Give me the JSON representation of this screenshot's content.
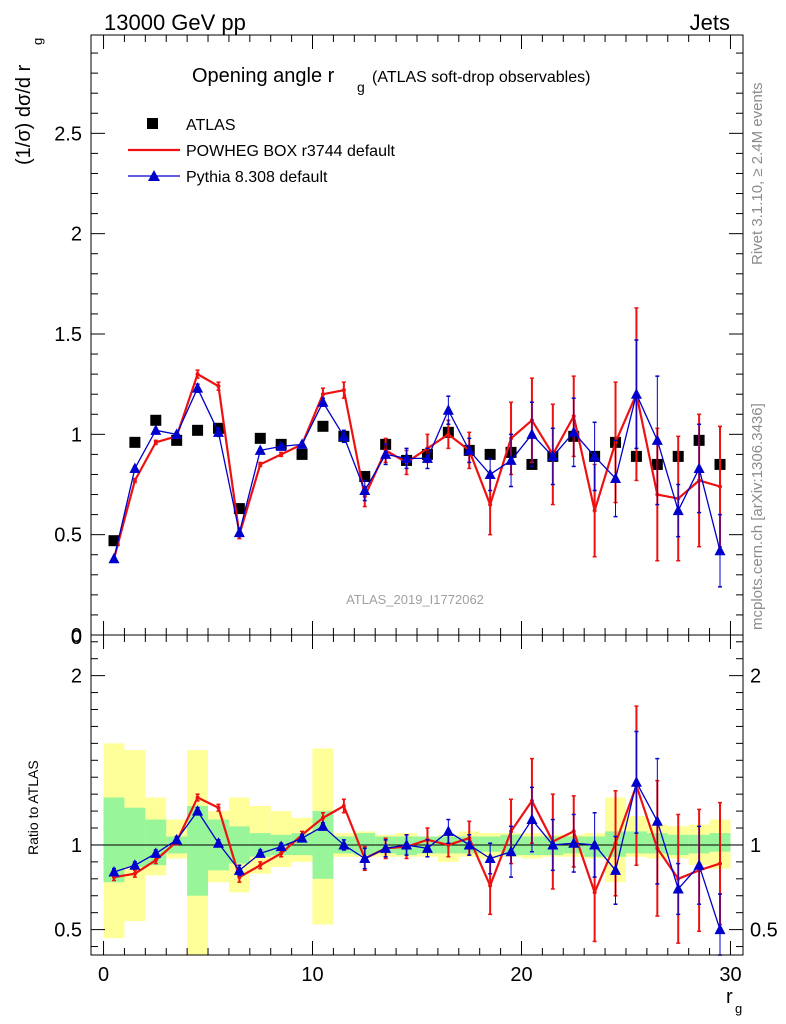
{
  "header": {
    "left": "13000 GeV pp",
    "right": "Jets"
  },
  "title": {
    "main": "Opening angle r",
    "sub": "g",
    "rest": "(ATLAS soft-drop observables)"
  },
  "watermark": "ATLAS_2019_I1772062",
  "side_labels": {
    "rivet": "Rivet 3.1.10, ≥ 2.4M events",
    "mcplots": "mcplots.cern.ch [arXiv:1306.3436]"
  },
  "axes": {
    "ylabel_main": "(1/σ) dσ/d r",
    "ylabel_main_sub": "g",
    "ylabel_ratio": "Ratio to ATLAS",
    "xlabel": "r",
    "xlabel_sub": "g"
  },
  "legend": {
    "atlas": "ATLAS",
    "powheg": "POWHEG BOX r3744 default",
    "pythia": "Pythia 8.308 default"
  },
  "colors": {
    "atlas": "#000000",
    "powheg": "#ee1111",
    "pythia": "#0000cc",
    "band_inner": "#99f599",
    "band_outer": "#ffff99"
  },
  "chart_data": [
    {
      "type": "scatter",
      "panel": "main",
      "title": "Opening angle r_g (ATLAS soft-drop observables)",
      "xlim": [
        -0.6,
        30.6
      ],
      "ylim": [
        0,
        2.99
      ],
      "yticks": [
        0,
        0.5,
        1,
        1.5,
        2,
        2.5
      ],
      "xticks": [
        0,
        10,
        20,
        30
      ],
      "x": [
        0.5,
        1.5,
        2.5,
        3.5,
        4.5,
        5.5,
        6.5,
        7.5,
        8.5,
        9.5,
        10.5,
        11.5,
        12.5,
        13.5,
        14.5,
        15.5,
        16.5,
        17.5,
        18.5,
        19.5,
        20.5,
        21.5,
        22.5,
        23.5,
        24.5,
        25.5,
        26.5,
        27.5,
        28.5,
        29.5
      ],
      "series": [
        {
          "name": "ATLAS",
          "values": [
            0.47,
            0.96,
            1.07,
            0.97,
            1.02,
            1.03,
            0.63,
            0.98,
            0.95,
            0.9,
            1.04,
            0.99,
            0.79,
            0.95,
            0.87,
            0.9,
            1.01,
            0.92,
            0.9,
            0.91,
            0.85,
            0.89,
            0.99,
            0.89,
            0.96,
            0.89,
            0.85,
            0.89,
            0.97,
            0.85
          ]
        },
        {
          "name": "POWHEG BOX r3744 default",
          "values": [
            0.38,
            0.77,
            0.96,
            0.99,
            1.3,
            1.24,
            0.5,
            0.85,
            0.9,
            0.95,
            1.2,
            1.22,
            0.69,
            0.92,
            0.86,
            0.93,
            1.0,
            0.92,
            0.65,
            0.98,
            1.07,
            0.9,
            1.09,
            0.62,
            0.96,
            1.2,
            0.7,
            0.68,
            0.77,
            0.74
          ],
          "errors": [
            0.01,
            0.01,
            0.01,
            0.01,
            0.02,
            0.02,
            0.02,
            0.01,
            0.01,
            0.01,
            0.03,
            0.04,
            0.05,
            0.06,
            0.06,
            0.07,
            0.07,
            0.09,
            0.15,
            0.18,
            0.21,
            0.25,
            0.2,
            0.23,
            0.3,
            0.43,
            0.33,
            0.31,
            0.33,
            0.3
          ]
        },
        {
          "name": "Pythia 8.308 default",
          "values": [
            0.38,
            0.83,
            1.02,
            1.0,
            1.23,
            1.01,
            0.51,
            0.92,
            0.94,
            0.95,
            1.16,
            0.99,
            0.72,
            0.9,
            0.88,
            0.88,
            1.12,
            0.92,
            0.8,
            0.87,
            1.0,
            0.89,
            1.01,
            0.89,
            0.78,
            1.2,
            0.97,
            0.62,
            0.83,
            0.42
          ],
          "errors": [
            0.01,
            0.01,
            0.01,
            0.01,
            0.02,
            0.02,
            0.02,
            0.01,
            0.01,
            0.01,
            0.02,
            0.03,
            0.05,
            0.05,
            0.05,
            0.05,
            0.07,
            0.06,
            0.08,
            0.13,
            0.16,
            0.14,
            0.17,
            0.17,
            0.19,
            0.27,
            0.32,
            0.13,
            0.22,
            0.18
          ]
        }
      ]
    },
    {
      "type": "scatter",
      "panel": "ratio",
      "ylabel": "Ratio to ATLAS",
      "xlabel": "r_g",
      "xlim": [
        -0.6,
        30.6
      ],
      "ylim": [
        0.35,
        2.24
      ],
      "yticks": [
        0.5,
        1,
        2
      ],
      "xticks": [
        0,
        10,
        20,
        30
      ],
      "reference_line": 1,
      "x": [
        0.5,
        1.5,
        2.5,
        3.5,
        4.5,
        5.5,
        6.5,
        7.5,
        8.5,
        9.5,
        10.5,
        11.5,
        12.5,
        13.5,
        14.5,
        15.5,
        16.5,
        17.5,
        18.5,
        19.5,
        20.5,
        21.5,
        22.5,
        23.5,
        24.5,
        25.5,
        26.5,
        27.5,
        28.5,
        29.5
      ],
      "bands": [
        {
          "name": "inner",
          "low": [
            0.78,
            0.87,
            0.88,
            0.95,
            0.7,
            0.85,
            0.89,
            0.93,
            0.94,
            0.94,
            0.8,
            0.95,
            0.94,
            0.95,
            0.94,
            0.95,
            0.95,
            0.95,
            0.96,
            0.94,
            0.94,
            0.94,
            0.95,
            0.93,
            0.93,
            0.95,
            0.95,
            0.94,
            0.95,
            0.96
          ],
          "high": [
            1.28,
            1.22,
            1.15,
            1.05,
            1.23,
            1.15,
            1.11,
            1.07,
            1.06,
            1.07,
            1.2,
            1.05,
            1.07,
            1.05,
            1.05,
            1.05,
            1.05,
            1.05,
            1.05,
            1.06,
            1.05,
            1.05,
            1.05,
            1.05,
            1.08,
            1.08,
            1.07,
            1.06,
            1.06,
            1.07
          ]
        },
        {
          "name": "outer",
          "low": [
            0.45,
            0.55,
            0.82,
            0.92,
            0.35,
            0.78,
            0.72,
            0.83,
            0.87,
            0.9,
            0.53,
            0.93,
            0.93,
            0.93,
            0.93,
            0.93,
            0.9,
            0.93,
            0.92,
            0.93,
            0.92,
            0.93,
            0.93,
            0.92,
            0.78,
            0.93,
            0.92,
            0.92,
            0.88,
            0.86
          ],
          "high": [
            1.6,
            1.56,
            1.28,
            1.15,
            1.56,
            1.2,
            1.28,
            1.23,
            1.2,
            1.16,
            1.57,
            1.07,
            1.08,
            1.06,
            1.07,
            1.05,
            1.06,
            1.08,
            1.07,
            1.07,
            1.07,
            1.06,
            1.06,
            1.07,
            1.28,
            1.17,
            1.12,
            1.11,
            1.12,
            1.15
          ]
        }
      ],
      "series": [
        {
          "name": "POWHEG BOX r3744 default",
          "values": [
            0.81,
            0.83,
            0.91,
            1.02,
            1.28,
            1.22,
            0.81,
            0.88,
            0.95,
            1.06,
            1.16,
            1.23,
            0.92,
            0.98,
            0.99,
            1.03,
            1.0,
            1.04,
            0.76,
            1.08,
            1.26,
            1.02,
            1.08,
            0.72,
            1.01,
            1.35,
            0.98,
            0.8,
            0.85,
            0.89
          ],
          "errors": [
            0.02,
            0.02,
            0.02,
            0.02,
            0.02,
            0.02,
            0.03,
            0.02,
            0.02,
            0.02,
            0.03,
            0.04,
            0.07,
            0.06,
            0.07,
            0.07,
            0.07,
            0.1,
            0.17,
            0.19,
            0.25,
            0.28,
            0.21,
            0.29,
            0.31,
            0.47,
            0.4,
            0.38,
            0.36,
            0.36
          ]
        },
        {
          "name": "Pythia 8.308 default",
          "values": [
            0.84,
            0.88,
            0.95,
            1.03,
            1.2,
            1.01,
            0.85,
            0.95,
            0.99,
            1.04,
            1.11,
            1.0,
            0.92,
            0.98,
            1.0,
            0.98,
            1.08,
            1.0,
            0.92,
            0.96,
            1.15,
            1.0,
            1.01,
            1.0,
            0.85,
            1.37,
            1.14,
            0.74,
            0.88,
            0.5
          ],
          "errors": [
            0.02,
            0.02,
            0.02,
            0.02,
            0.02,
            0.02,
            0.03,
            0.02,
            0.02,
            0.02,
            0.02,
            0.03,
            0.06,
            0.05,
            0.06,
            0.05,
            0.07,
            0.06,
            0.09,
            0.15,
            0.19,
            0.15,
            0.17,
            0.19,
            0.2,
            0.3,
            0.37,
            0.15,
            0.23,
            0.21
          ]
        }
      ]
    }
  ]
}
